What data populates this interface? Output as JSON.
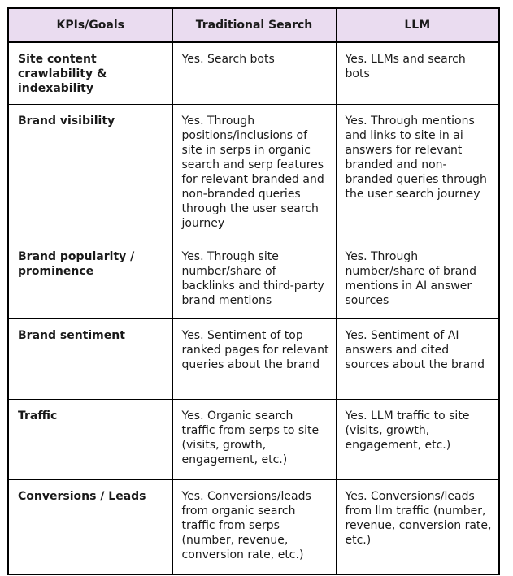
{
  "colors": {
    "header_background": "#eadcf0",
    "border": "#000000"
  },
  "table": {
    "headers": [
      "KPIs/Goals",
      "Traditional Search",
      "LLM"
    ],
    "rows": [
      {
        "goal": "Site content crawlability & indexability",
        "traditional_search": "Yes. Search bots",
        "llm": "Yes. LLMs and search bots"
      },
      {
        "goal": "Brand visibility",
        "traditional_search": "Yes. Through positions/inclusions of site in serps in organic search and serp features for relevant branded and non-branded queries through the user search journey",
        "llm": "Yes. Through mentions and links to site in ai answers for relevant branded and non-branded queries through the user search journey"
      },
      {
        "goal": "Brand popularity / prominence",
        "traditional_search": "Yes. Through site number/share of backlinks and third-party brand mentions",
        "llm": "Yes. Through number/share of brand mentions in AI answer sources"
      },
      {
        "goal": "Brand sentiment",
        "traditional_search": "Yes. Sentiment of top ranked pages for relevant queries about the brand",
        "llm": "Yes. Sentiment of AI answers and cited sources about the brand"
      },
      {
        "goal": "Traffic",
        "traditional_search": "Yes. Organic search traffic from serps to site (visits, growth, engagement, etc.)",
        "llm": "Yes. LLM traffic to site (visits, growth, engagement, etc.)"
      },
      {
        "goal": "Conversions / Leads",
        "traditional_search": "Yes. Conversions/leads from organic search traffic from serps (number, revenue, conversion rate, etc.)",
        "llm": "Yes. Conversions/leads from llm traffic (number, revenue, conversion rate, etc.)"
      }
    ]
  }
}
